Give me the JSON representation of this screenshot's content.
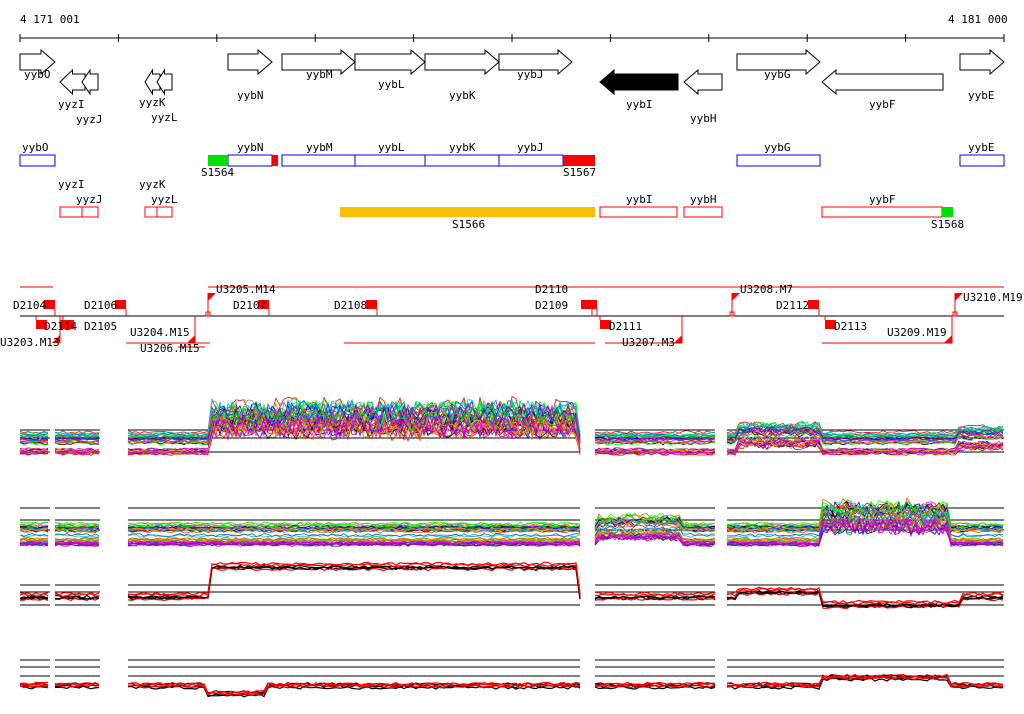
{
  "axis": {
    "start_label": "4 171 001",
    "end_label": "4 181 000"
  },
  "genes": [
    "yybO",
    "yyzI",
    "yyzJ",
    "yyzK",
    "yyzL",
    "yybN",
    "yybM",
    "yybL",
    "yybK",
    "yybJ",
    "yybI",
    "yybH",
    "yybG",
    "yybF",
    "yybE"
  ],
  "segments_row1": {
    "labels": [
      "yybO",
      "yybN",
      "yybM",
      "yybL",
      "yybK",
      "yybJ",
      "yybG",
      "yybE"
    ],
    "sites": [
      "S1564",
      "S1567"
    ]
  },
  "segments_row2": {
    "labels": [
      "yyzI",
      "yyzJ",
      "yyzK",
      "yyzL",
      "yybI",
      "yybH",
      "yybF"
    ],
    "sites": [
      "S1566",
      "S1568"
    ]
  },
  "markers": [
    "D2104",
    "D2106",
    "U3205.M14",
    "D2107",
    "D2108",
    "D2109",
    "D2110",
    "U3208.M7",
    "D2112",
    "U3210.M19",
    "U3203.M13",
    "D2114",
    "D2105",
    "U3204.M15",
    "U3206.M15",
    "D2111",
    "U3207.M3",
    "D2113",
    "U3209.M19"
  ],
  "colors": {
    "gene_box": "#0000ff",
    "segment_box": "#ff0000",
    "site_start": "#00e000",
    "site_end": "#ff0000",
    "highlight": "#f8c000"
  }
}
